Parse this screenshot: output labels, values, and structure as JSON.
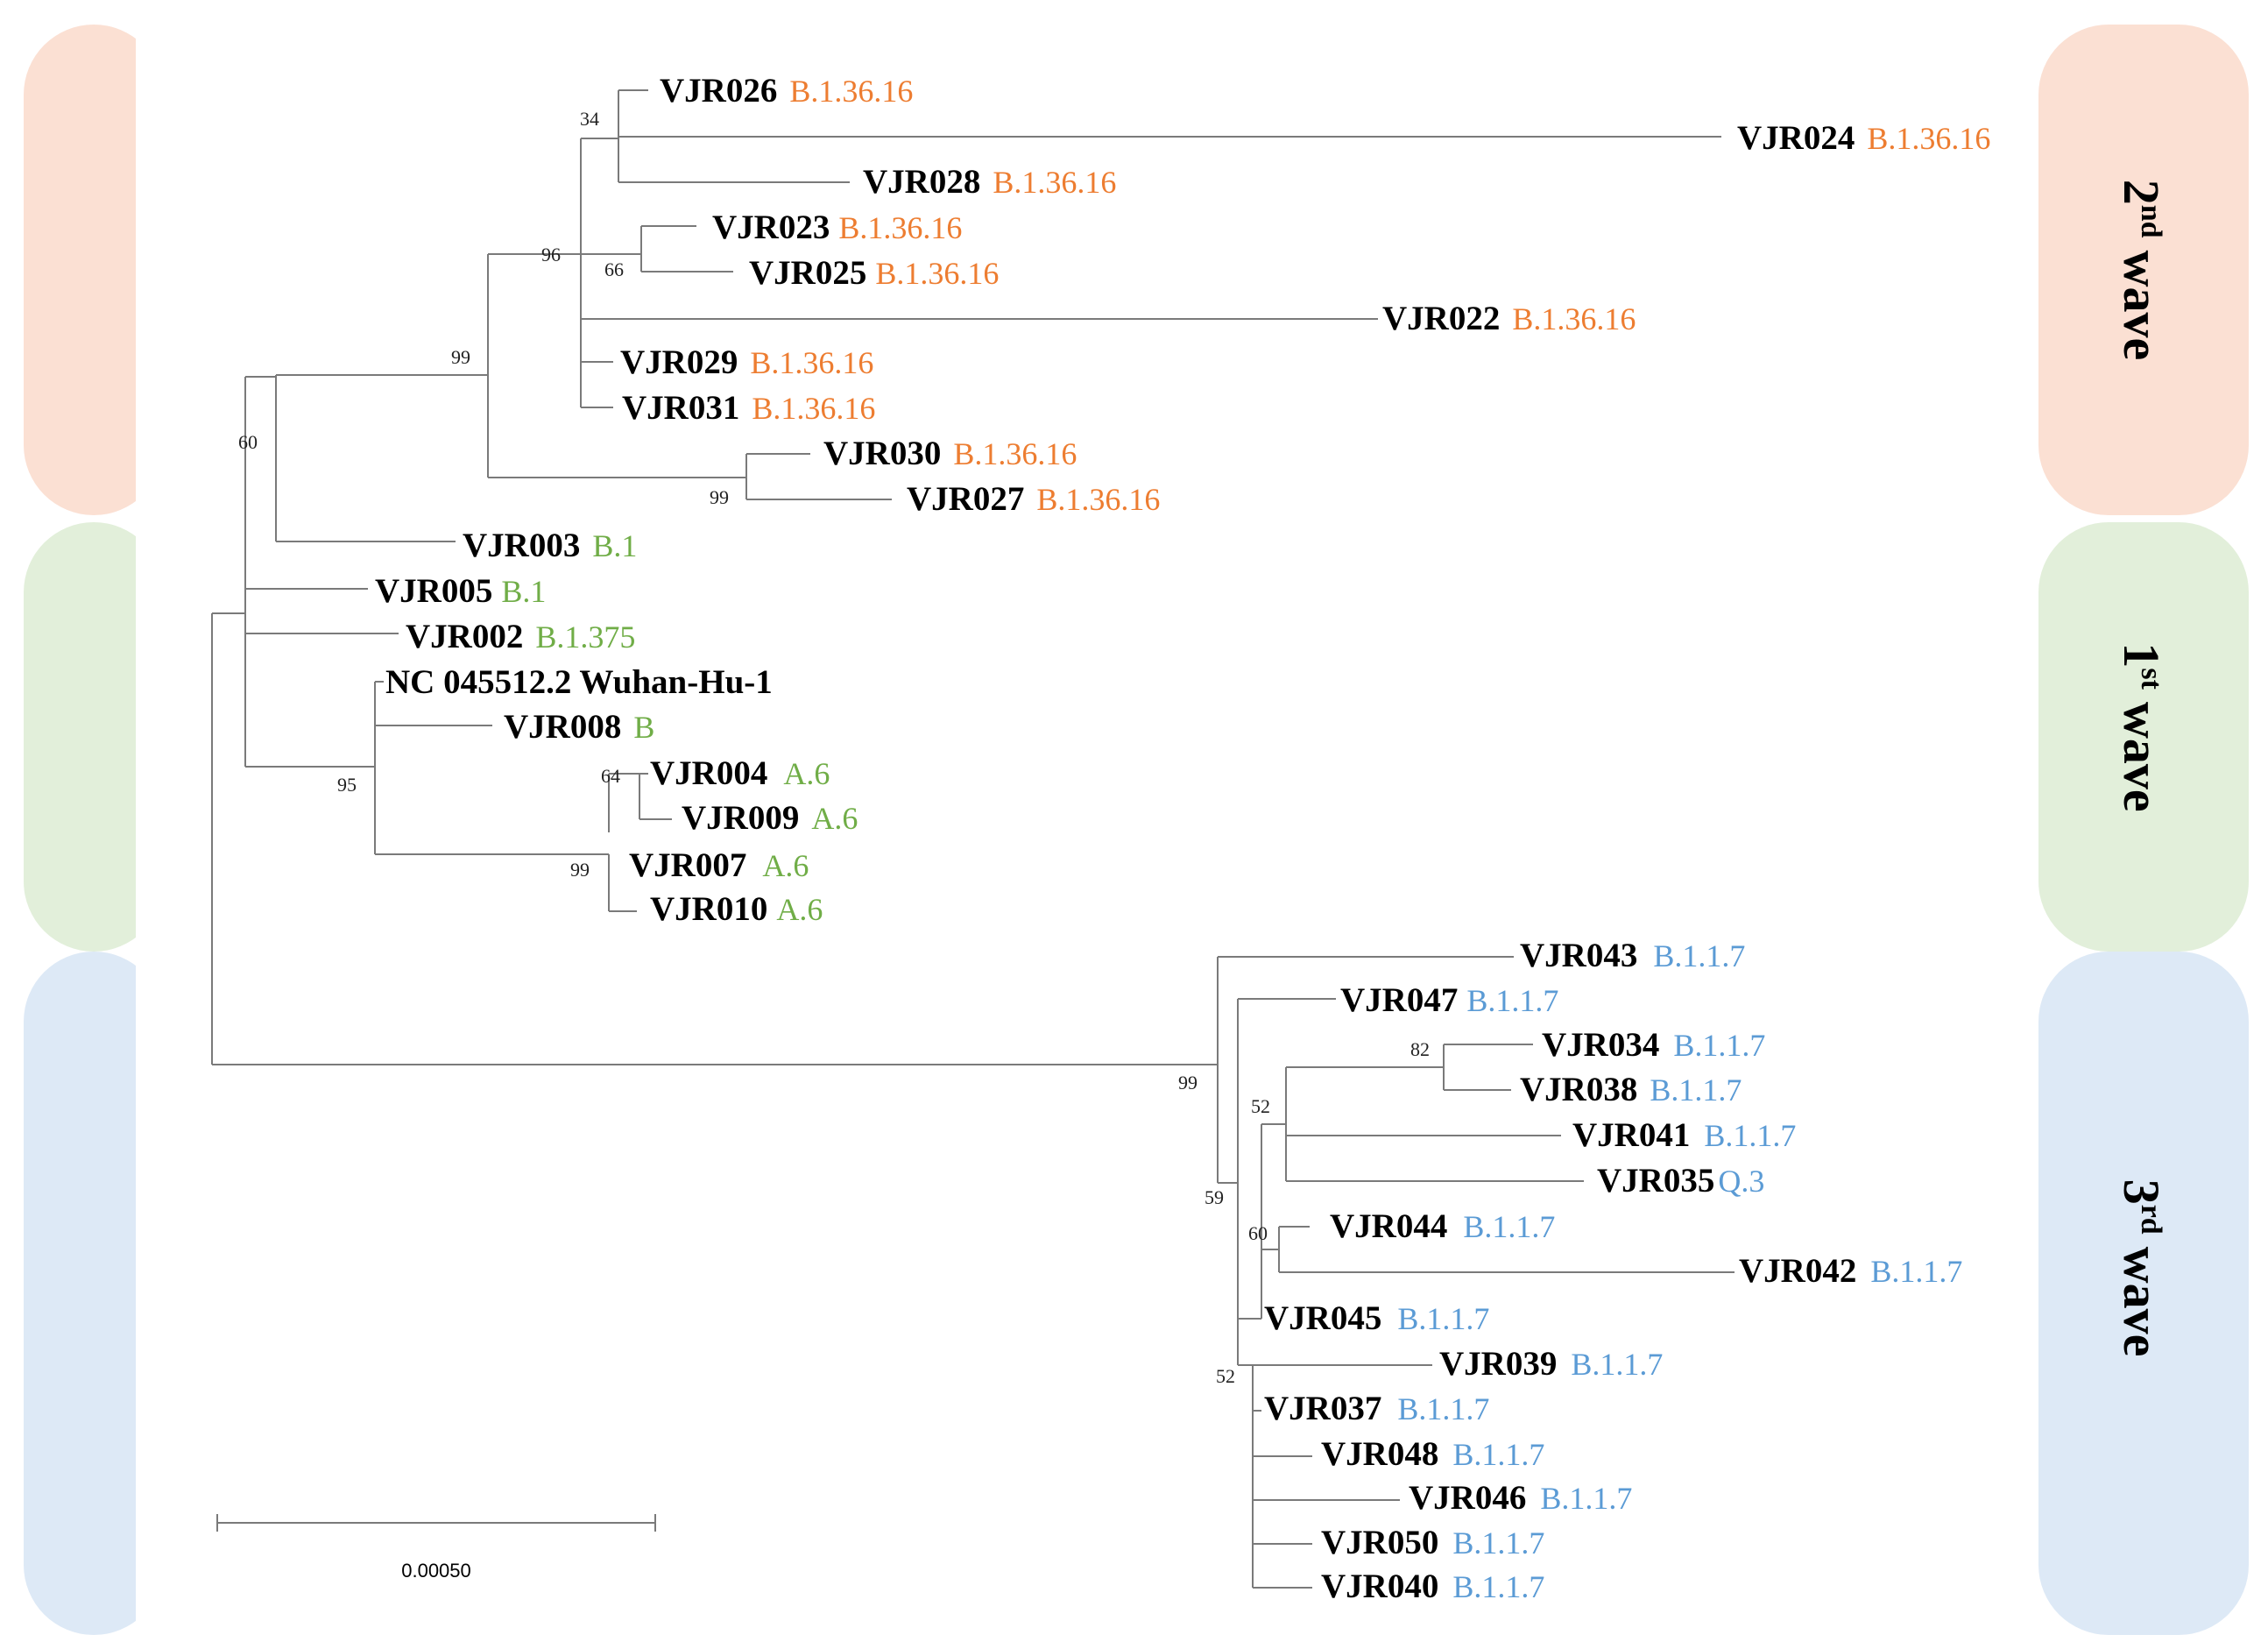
{
  "colors": {
    "wave2_band": "#fbe0d3",
    "wave1_band": "#e2efda",
    "wave3_band": "#dde9f6",
    "wave2_lineage": "#ed7d31",
    "wave1_lineage": "#70ad47",
    "wave3_lineage": "#5b9bd5"
  },
  "waves": [
    {
      "ordinal": "2",
      "sup": "nd",
      "word": "wave"
    },
    {
      "ordinal": "1",
      "sup": "st",
      "word": "wave"
    },
    {
      "ordinal": "3",
      "sup": "rd",
      "word": "wave"
    }
  ],
  "taxa": [
    {
      "name": "VJR026",
      "lineage": "B.1.36.16",
      "wave": 2
    },
    {
      "name": "VJR024",
      "lineage": "B.1.36.16",
      "wave": 2
    },
    {
      "name": "VJR028",
      "lineage": "B.1.36.16",
      "wave": 2
    },
    {
      "name": "VJR023",
      "lineage": "B.1.36.16",
      "wave": 2
    },
    {
      "name": "VJR025",
      "lineage": "B.1.36.16",
      "wave": 2
    },
    {
      "name": "VJR022",
      "lineage": "B.1.36.16",
      "wave": 2
    },
    {
      "name": "VJR029",
      "lineage": "B.1.36.16",
      "wave": 2
    },
    {
      "name": "VJR031",
      "lineage": "B.1.36.16",
      "wave": 2
    },
    {
      "name": "VJR030",
      "lineage": "B.1.36.16",
      "wave": 2
    },
    {
      "name": "VJR027",
      "lineage": "B.1.36.16",
      "wave": 2
    },
    {
      "name": "VJR003",
      "lineage": "B.1",
      "wave": 1
    },
    {
      "name": "VJR005",
      "lineage": "B.1",
      "wave": 1
    },
    {
      "name": "VJR002",
      "lineage": "B.1.375",
      "wave": 1
    },
    {
      "name": "NC 045512.2 Wuhan-Hu-1",
      "lineage": "",
      "wave": 1
    },
    {
      "name": "VJR008",
      "lineage": "B",
      "wave": 1
    },
    {
      "name": "VJR004",
      "lineage": "A.6",
      "wave": 1
    },
    {
      "name": "VJR009",
      "lineage": "A.6",
      "wave": 1
    },
    {
      "name": "VJR007",
      "lineage": "A.6",
      "wave": 1
    },
    {
      "name": "VJR010",
      "lineage": "A.6",
      "wave": 1
    },
    {
      "name": "VJR043",
      "lineage": "B.1.1.7",
      "wave": 3
    },
    {
      "name": "VJR047",
      "lineage": "B.1.1.7",
      "wave": 3
    },
    {
      "name": "VJR034",
      "lineage": "B.1.1.7",
      "wave": 3
    },
    {
      "name": "VJR038",
      "lineage": "B.1.1.7",
      "wave": 3
    },
    {
      "name": "VJR041",
      "lineage": "B.1.1.7",
      "wave": 3
    },
    {
      "name": "VJR035",
      "lineage": "Q.3",
      "wave": 3
    },
    {
      "name": "VJR044",
      "lineage": "B.1.1.7",
      "wave": 3
    },
    {
      "name": "VJR042",
      "lineage": "B.1.1.7",
      "wave": 3
    },
    {
      "name": "VJR045",
      "lineage": "B.1.1.7",
      "wave": 3
    },
    {
      "name": "VJR039",
      "lineage": "B.1.1.7",
      "wave": 3
    },
    {
      "name": "VJR037",
      "lineage": "B.1.1.7",
      "wave": 3
    },
    {
      "name": "VJR048",
      "lineage": "B.1.1.7",
      "wave": 3
    },
    {
      "name": "VJR046",
      "lineage": "B.1.1.7",
      "wave": 3
    },
    {
      "name": "VJR050",
      "lineage": "B.1.1.7",
      "wave": 3
    },
    {
      "name": "VJR040",
      "lineage": "B.1.1.7",
      "wave": 3
    }
  ],
  "bootstrap": [
    "34",
    "96",
    "66",
    "99",
    "60",
    "99",
    "64",
    "95",
    "99",
    "99",
    "82",
    "52",
    "59",
    "60",
    "52"
  ],
  "scale_bar": {
    "label": "0.00050",
    "value": 0.0005
  }
}
